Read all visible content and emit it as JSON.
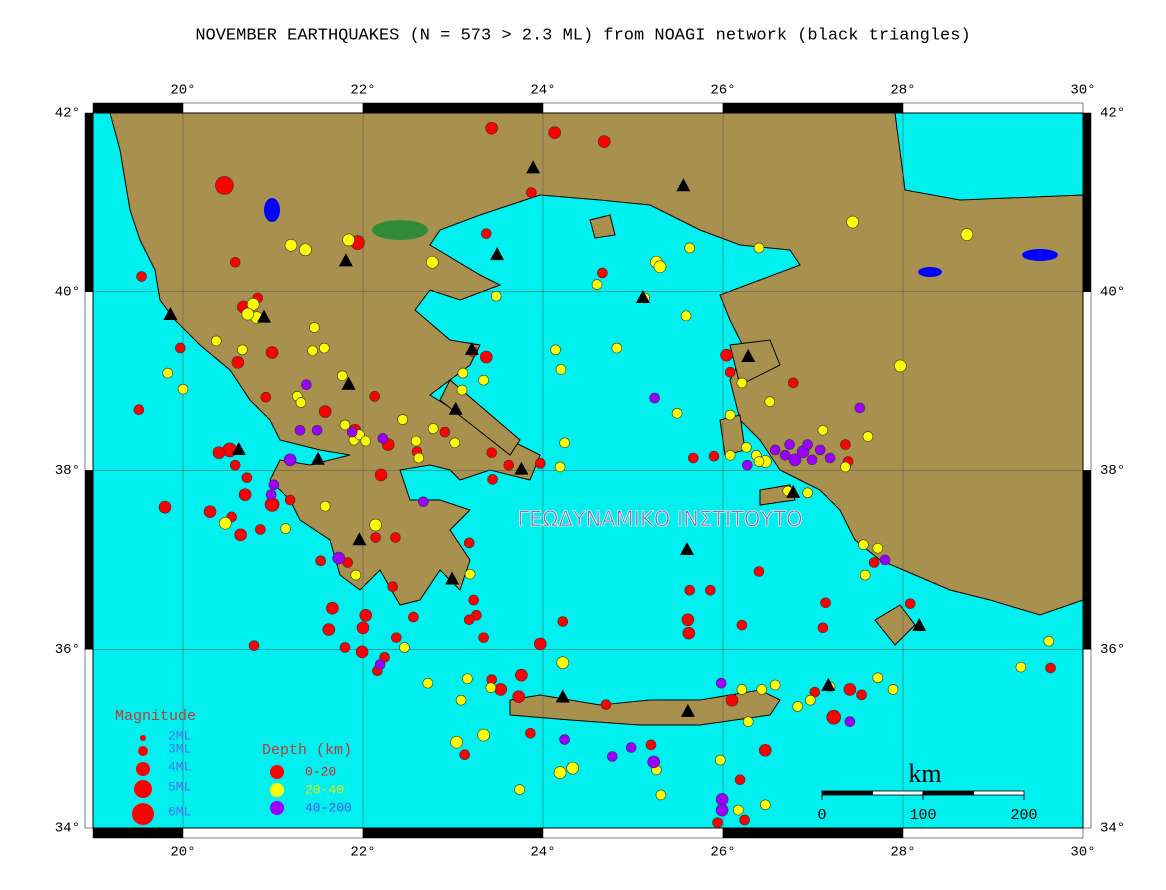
{
  "chart_data": {
    "type": "scatter",
    "title": "NOVEMBER EARTHQUAKES (N = 573 > 2.3 ML) from NOAGI network (black triangles)",
    "watermark": "ΓΕΩΔΥΝΑΜΙΚΟ ΙΝΣΤΙΤΟΥΤΟ",
    "xlim": [
      19,
      30
    ],
    "ylim": [
      34,
      42
    ],
    "xticks": [
      {
        "value": 20,
        "label": "20°"
      },
      {
        "value": 22,
        "label": "22°"
      },
      {
        "value": 24,
        "label": "24°"
      },
      {
        "value": 26,
        "label": "26°"
      },
      {
        "value": 28,
        "label": "28°"
      },
      {
        "value": 30,
        "label": "30°"
      }
    ],
    "yticks": [
      {
        "value": 34,
        "label": "34°"
      },
      {
        "value": 36,
        "label": "36°"
      },
      {
        "value": 38,
        "label": "38°"
      },
      {
        "value": 40,
        "label": "40°"
      },
      {
        "value": 42,
        "label": "42°"
      }
    ],
    "grid": true,
    "legend_title": "Depth (km)",
    "series": [
      {
        "name": "0-20",
        "color": "#ff0000",
        "x": [
          20.46,
          23.43,
          24.13,
          24.68,
          23.87,
          21.94,
          23.37,
          24.66,
          19.54,
          20.58,
          20.83,
          20.67,
          19.97,
          20.61,
          20.99,
          19.51,
          20.92,
          21.58,
          22.13,
          21.91,
          22.28,
          20.52,
          20.4,
          20.58,
          20.71,
          20.69,
          20.99,
          20.3,
          20.54,
          19.8,
          20.64,
          20.86,
          21.19,
          22.2,
          22.14,
          22.36,
          21.53,
          21.83,
          22.33,
          22.56,
          21.66,
          21.62,
          22.03,
          22.0,
          21.8,
          21.99,
          22.24,
          22.16,
          22.37,
          20.79,
          23.18,
          23.23,
          23.26,
          23.18,
          23.34,
          23.97,
          24.22,
          23.43,
          23.53,
          23.76,
          23.73,
          23.13,
          23.86,
          24.7,
          25.2,
          25.63,
          25.86,
          25.61,
          25.62,
          26.21,
          26.4,
          26.1,
          26.47,
          26.19,
          25.94,
          26.24,
          27.02,
          27.23,
          27.11,
          27.14,
          27.41,
          27.54,
          28.08,
          29.64,
          27.68,
          25.67,
          25.9,
          26.04,
          26.08,
          26.78,
          27.36,
          27.39,
          23.43,
          23.62,
          23.97,
          23.22,
          23.37,
          22.6,
          22.91,
          23.44
        ],
        "y": [
          41.19,
          41.83,
          41.78,
          41.68,
          41.11,
          40.55,
          40.65,
          40.21,
          40.17,
          40.33,
          39.93,
          39.83,
          39.37,
          39.21,
          39.32,
          38.68,
          38.82,
          38.66,
          38.83,
          38.45,
          38.29,
          38.23,
          38.2,
          38.06,
          37.92,
          37.73,
          37.62,
          37.54,
          37.48,
          37.59,
          37.28,
          37.34,
          37.67,
          37.95,
          37.25,
          37.25,
          36.99,
          36.97,
          36.7,
          36.36,
          36.46,
          36.22,
          36.38,
          36.24,
          36.02,
          35.97,
          35.91,
          35.76,
          36.13,
          36.04,
          37.19,
          36.55,
          36.38,
          36.33,
          36.13,
          36.06,
          36.31,
          35.66,
          35.55,
          35.71,
          35.47,
          34.82,
          35.06,
          35.38,
          34.93,
          36.66,
          36.66,
          36.33,
          36.18,
          36.27,
          36.87,
          35.43,
          34.87,
          34.54,
          34.06,
          34.09,
          35.52,
          35.24,
          36.24,
          36.52,
          35.55,
          35.49,
          36.51,
          35.79,
          36.97,
          38.14,
          38.16,
          39.29,
          39.1,
          38.98,
          38.29,
          38.1,
          38.2,
          38.06,
          38.08,
          39.33,
          39.27,
          38.21,
          38.43,
          37.9
        ],
        "size": [
          5,
          3.5,
          3.5,
          3.5,
          3,
          4,
          3,
          3,
          3,
          3,
          3,
          3.5,
          3,
          3.5,
          3.5,
          3,
          3,
          3.5,
          3,
          3.5,
          3.5,
          4,
          3.5,
          3,
          3,
          3.5,
          4,
          3.5,
          3,
          3.5,
          3.5,
          3,
          3,
          3.5,
          3,
          3,
          3,
          3,
          3,
          3,
          3.5,
          3.5,
          3.5,
          3.5,
          3,
          3.5,
          3,
          3,
          3,
          3,
          3,
          3,
          3,
          3,
          3,
          3.5,
          3,
          3,
          3.5,
          3.5,
          3.5,
          3,
          3,
          3,
          3,
          3,
          3,
          3.5,
          3.5,
          3,
          3,
          3.5,
          3.5,
          3,
          3,
          3,
          3,
          4,
          3,
          3,
          3.5,
          3,
          3,
          3,
          3,
          3,
          3,
          3.5,
          3,
          3,
          3,
          3,
          3,
          3,
          3,
          3,
          3.5,
          3,
          3,
          3
        ]
      },
      {
        "name": "20-40",
        "color": "#ffff00",
        "x": [
          21.2,
          21.84,
          21.36,
          22.77,
          23.48,
          25.26,
          25.3,
          25.63,
          24.6,
          25.59,
          26.4,
          27.44,
          28.71,
          27.97,
          20.78,
          20.82,
          20.72,
          20.66,
          20.37,
          19.83,
          20.0,
          21.46,
          21.44,
          21.57,
          21.77,
          21.27,
          21.31,
          21.8,
          21.9,
          21.96,
          22.03,
          22.44,
          22.59,
          22.78,
          22.62,
          23.02,
          23.11,
          23.1,
          23.34,
          24.14,
          24.2,
          24.82,
          25.13,
          25.49,
          26.08,
          26.08,
          26.37,
          26.47,
          26.21,
          26.52,
          27.61,
          27.11,
          27.36,
          24.24,
          24.19,
          22.14,
          20.47,
          21.14,
          21.58,
          21.92,
          22.46,
          23.19,
          22.72,
          23.16,
          23.42,
          23.34,
          23.04,
          23.09,
          24.22,
          24.19,
          24.33,
          23.74,
          25.26,
          25.31,
          25.97,
          26.17,
          26.47,
          26.21,
          26.43,
          26.58,
          26.28,
          26.83,
          26.97,
          27.19,
          27.72,
          27.89,
          29.31,
          29.62,
          27.58,
          27.56,
          27.72,
          26.72,
          26.94,
          26.26,
          26.4
        ],
        "y": [
          40.52,
          40.58,
          40.47,
          40.33,
          39.95,
          40.33,
          40.28,
          40.49,
          40.08,
          39.73,
          40.49,
          40.78,
          40.64,
          39.17,
          39.86,
          39.71,
          39.75,
          39.35,
          39.45,
          39.09,
          38.91,
          39.6,
          39.34,
          39.37,
          39.06,
          38.83,
          38.76,
          38.51,
          38.34,
          38.4,
          38.33,
          38.57,
          38.33,
          38.47,
          38.14,
          38.31,
          39.09,
          38.9,
          39.01,
          39.35,
          39.13,
          39.37,
          39.93,
          38.64,
          38.62,
          38.17,
          38.17,
          38.1,
          38.98,
          38.77,
          38.38,
          38.45,
          38.04,
          38.31,
          38.04,
          37.39,
          37.41,
          37.35,
          37.6,
          36.83,
          36.02,
          36.84,
          35.62,
          35.67,
          35.57,
          35.04,
          34.96,
          35.43,
          35.85,
          34.62,
          34.67,
          34.43,
          34.65,
          34.37,
          34.76,
          34.2,
          34.26,
          35.55,
          35.55,
          35.6,
          35.19,
          35.36,
          35.43,
          35.58,
          35.68,
          35.55,
          35.8,
          36.09,
          36.83,
          37.17,
          37.13,
          37.77,
          37.75,
          38.26,
          38.1
        ],
        "size": [
          3.5,
          3.5,
          3.5,
          3.5,
          3,
          3.5,
          3.5,
          3,
          3,
          3,
          3,
          3.5,
          3.5,
          3.5,
          3.5,
          3.5,
          3.5,
          3,
          3,
          3,
          3,
          3,
          3,
          3,
          3,
          3,
          3,
          3,
          3,
          3,
          3,
          3,
          3,
          3,
          3,
          3,
          3,
          3,
          3,
          3,
          3,
          3,
          3,
          3,
          3,
          3,
          3,
          3.5,
          3,
          3,
          3,
          3,
          3,
          3,
          3,
          3.5,
          3.5,
          3,
          3,
          3,
          3,
          3,
          3,
          3,
          3,
          3.5,
          3.5,
          3,
          3.5,
          3.5,
          3.5,
          3,
          3,
          3,
          3,
          3,
          3,
          3,
          3,
          3,
          3,
          3,
          3,
          3,
          3,
          3,
          3,
          3,
          3,
          3,
          3,
          3,
          3,
          3,
          3
        ]
      },
      {
        "name": "40-200",
        "color": "#9900ff",
        "x": [
          21.37,
          21.49,
          21.3,
          21.19,
          21.01,
          20.98,
          21.73,
          22.19,
          22.67,
          24.24,
          24.98,
          25.23,
          24.77,
          25.24,
          25.98,
          25.99,
          25.99,
          27.41,
          27.52,
          27.8,
          26.58,
          26.69,
          26.8,
          26.89,
          26.99,
          27.08,
          26.74,
          26.94,
          27.19,
          26.27,
          22.22,
          21.88
        ],
        "y": [
          38.96,
          38.45,
          38.45,
          38.12,
          37.84,
          37.73,
          37.02,
          35.83,
          37.65,
          34.99,
          34.9,
          34.74,
          34.8,
          38.81,
          35.62,
          34.32,
          34.2,
          35.19,
          38.7,
          37.0,
          38.23,
          38.17,
          38.12,
          38.21,
          38.12,
          38.23,
          38.29,
          38.29,
          38.14,
          38.06,
          38.36,
          38.43
        ],
        "size": [
          3,
          3,
          3,
          3.5,
          3,
          3,
          3.5,
          3,
          3,
          3,
          3,
          3.5,
          3,
          3,
          3,
          3.5,
          3.5,
          3,
          3,
          3,
          3,
          3,
          3.5,
          3.5,
          3,
          3,
          3,
          3,
          3,
          3,
          3,
          3
        ]
      }
    ],
    "stations": {
      "color": "#000000",
      "x": [
        19.86,
        20.9,
        21.81,
        23.89,
        25.56,
        23.49,
        25.11,
        26.28,
        23.21,
        21.84,
        23.03,
        20.62,
        21.5,
        23.76,
        21.96,
        22.99,
        25.6,
        26.78,
        24.22,
        25.61,
        27.17,
        28.18
      ],
      "y": [
        39.74,
        39.71,
        40.34,
        41.38,
        41.18,
        40.41,
        39.93,
        39.27,
        39.35,
        38.96,
        38.68,
        38.23,
        38.12,
        38.01,
        37.22,
        36.78,
        37.11,
        37.75,
        35.46,
        35.3,
        35.59,
        36.26
      ]
    },
    "magnitude_legend": {
      "title": "Magnitude",
      "items": [
        {
          "value": 2,
          "label": "2ML"
        },
        {
          "value": 3,
          "label": "3ML"
        },
        {
          "value": 4,
          "label": "4ML"
        },
        {
          "value": 5,
          "label": "5ML"
        },
        {
          "value": 6,
          "label": "6ML"
        }
      ]
    },
    "scale_bar": {
      "label": "km",
      "ticks": [
        0,
        100,
        200
      ]
    }
  }
}
